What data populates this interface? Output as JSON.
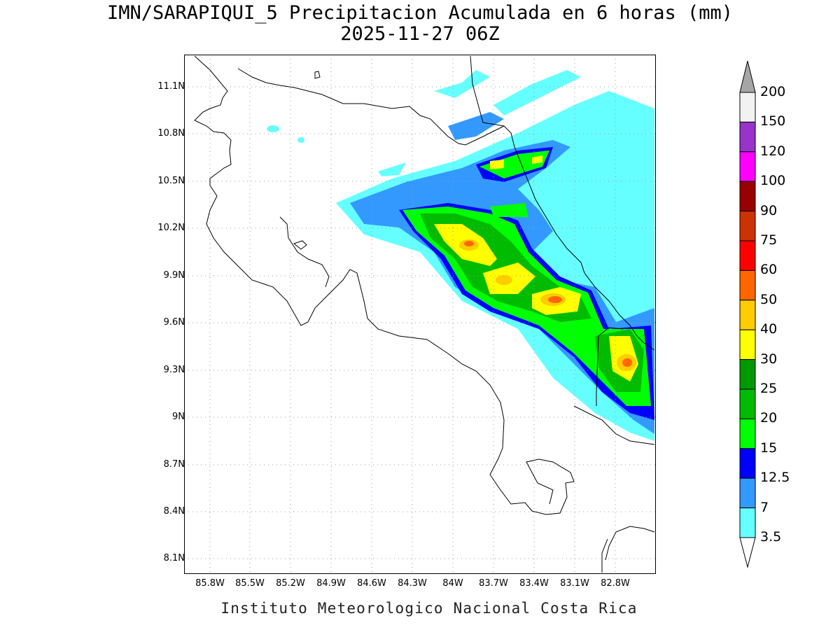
{
  "title": {
    "line1": "IMN/SARAPIQUI_5 Precipitacion Acumulada en 6 horas (mm)",
    "line2": "2025-11-27 06Z"
  },
  "footer": "Instituto Meteorologico Nacional Costa Rica",
  "map": {
    "lon_range": [
      -86.0,
      -82.6
    ],
    "lat_range": [
      7.9,
      11.2
    ],
    "lon_ticks": [
      "85.8W",
      "85.5W",
      "85.2W",
      "84.9W",
      "84.6W",
      "84.3W",
      "84W",
      "83.7W",
      "83.4W",
      "83.1W",
      "82.8W"
    ],
    "lat_ticks": [
      "11.1N",
      "10.8N",
      "10.5N",
      "10.2N",
      "9.9N",
      "9.6N",
      "9.3N",
      "9N",
      "8.7N",
      "8.4N",
      "8.1N"
    ],
    "grid": "dotted",
    "background": "#ffffff",
    "coastline_color": "#000000"
  },
  "colorbar": {
    "labels": [
      "200",
      "150",
      "120",
      "100",
      "90",
      "75",
      "60",
      "50",
      "40",
      "30",
      "25",
      "20",
      "15",
      "12.5",
      "7",
      "3.5"
    ],
    "colors": [
      "#f2f2f2",
      "#9933cc",
      "#ff00ff",
      "#990000",
      "#cc3300",
      "#ff0000",
      "#ff6600",
      "#ffcc00",
      "#ffff00",
      "#009900",
      "#00bb00",
      "#00ff00",
      "#0000ff",
      "#3399ff",
      "#66ffff"
    ],
    "top_arrow_color": "#a6a6a6",
    "bottom_arrow_color": "#ffffff"
  }
}
